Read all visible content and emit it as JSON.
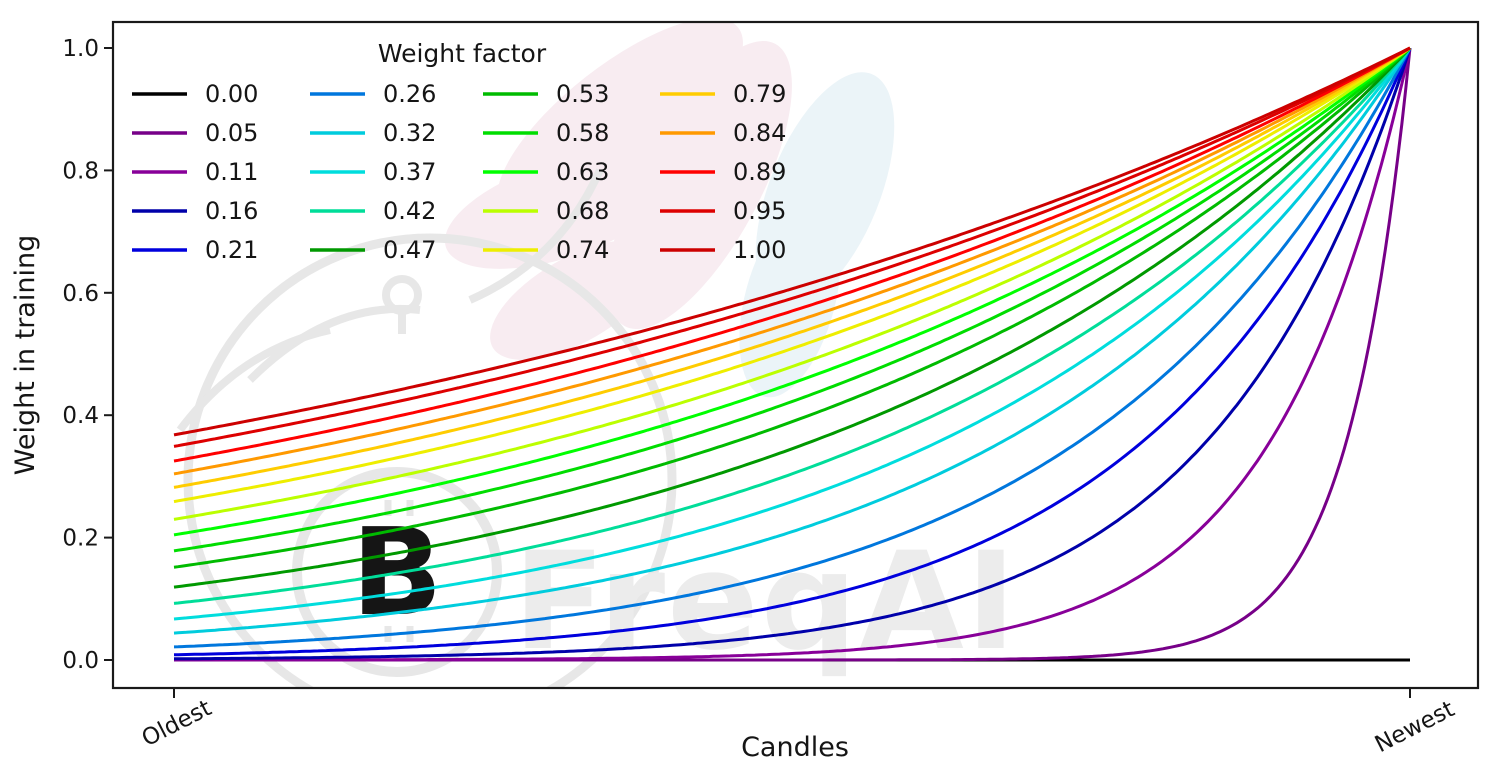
{
  "watermark": {
    "text": "FreqAI"
  },
  "chart_data": {
    "type": "line",
    "title": "",
    "legend_title": "Weight factor",
    "legend_position": "upper left",
    "legend_columns": 4,
    "xlabel": "Candles",
    "ylabel": "Weight in training",
    "x_tick_labels": [
      "Oldest",
      "Newest"
    ],
    "y_ticks": [
      0.0,
      0.2,
      0.4,
      0.6,
      0.8,
      1.0
    ],
    "y_tick_labels": [
      "0.0",
      "0.2",
      "0.4",
      "0.6",
      "0.8",
      "1.0"
    ],
    "ylim": [
      -0.05,
      1.05
    ],
    "grid": false,
    "formula": "weight(x) = exp(-(1 - x) / weight_factor), x from 0 (oldest candle) to 1 (newest candle); weight_factor 0.00 stays flat at 0",
    "series": [
      {
        "label": "0.00",
        "factor": 0.0,
        "color": "#000000",
        "oldest_weight": 0.0,
        "newest_weight": 0.0
      },
      {
        "label": "0.05",
        "factor": 0.05,
        "color": "#770088",
        "oldest_weight": 0.0,
        "newest_weight": 1.0
      },
      {
        "label": "0.11",
        "factor": 0.11,
        "color": "#880099",
        "oldest_weight": 0.0001,
        "newest_weight": 1.0
      },
      {
        "label": "0.16",
        "factor": 0.16,
        "color": "#0000AA",
        "oldest_weight": 0.002,
        "newest_weight": 1.0
      },
      {
        "label": "0.21",
        "factor": 0.21,
        "color": "#0000DD",
        "oldest_weight": 0.009,
        "newest_weight": 1.0
      },
      {
        "label": "0.26",
        "factor": 0.26,
        "color": "#0077DD",
        "oldest_weight": 0.021,
        "newest_weight": 1.0
      },
      {
        "label": "0.32",
        "factor": 0.32,
        "color": "#00CCDD",
        "oldest_weight": 0.044,
        "newest_weight": 1.0
      },
      {
        "label": "0.37",
        "factor": 0.37,
        "color": "#00DDDD",
        "oldest_weight": 0.067,
        "newest_weight": 1.0
      },
      {
        "label": "0.42",
        "factor": 0.42,
        "color": "#00DD99",
        "oldest_weight": 0.092,
        "newest_weight": 1.0
      },
      {
        "label": "0.47",
        "factor": 0.47,
        "color": "#009900",
        "oldest_weight": 0.119,
        "newest_weight": 1.0
      },
      {
        "label": "0.53",
        "factor": 0.53,
        "color": "#00BB00",
        "oldest_weight": 0.152,
        "newest_weight": 1.0
      },
      {
        "label": "0.58",
        "factor": 0.58,
        "color": "#00DD00",
        "oldest_weight": 0.178,
        "newest_weight": 1.0
      },
      {
        "label": "0.63",
        "factor": 0.63,
        "color": "#00FF00",
        "oldest_weight": 0.204,
        "newest_weight": 1.0
      },
      {
        "label": "0.68",
        "factor": 0.68,
        "color": "#BBFF00",
        "oldest_weight": 0.23,
        "newest_weight": 1.0
      },
      {
        "label": "0.74",
        "factor": 0.74,
        "color": "#EEEE00",
        "oldest_weight": 0.259,
        "newest_weight": 1.0
      },
      {
        "label": "0.79",
        "factor": 0.79,
        "color": "#FFCC00",
        "oldest_weight": 0.282,
        "newest_weight": 1.0
      },
      {
        "label": "0.84",
        "factor": 0.84,
        "color": "#FF9900",
        "oldest_weight": 0.304,
        "newest_weight": 1.0
      },
      {
        "label": "0.89",
        "factor": 0.89,
        "color": "#FF0000",
        "oldest_weight": 0.325,
        "newest_weight": 1.0
      },
      {
        "label": "0.95",
        "factor": 0.95,
        "color": "#DD0000",
        "oldest_weight": 0.349,
        "newest_weight": 1.0
      },
      {
        "label": "1.00",
        "factor": 1.0,
        "color": "#CC0000",
        "oldest_weight": 0.368,
        "newest_weight": 1.0
      }
    ],
    "colors": {
      "axes_text": "#151515",
      "spine": "#1a1a1a",
      "watermark_gray": "#e7e7e7",
      "watermark_pink": "#f8ecf1",
      "watermark_blue": "#ebf4f8"
    }
  }
}
